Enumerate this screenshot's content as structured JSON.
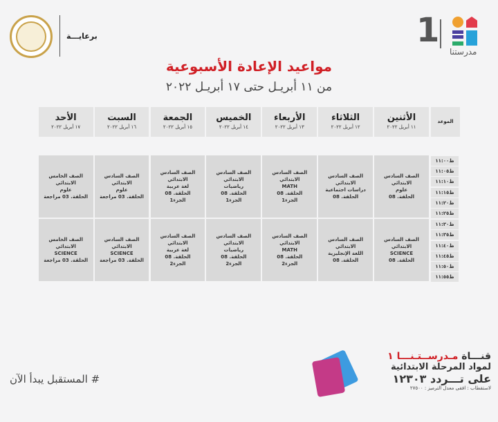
{
  "header": {
    "sponsor_label": "برعايـــة",
    "brand_name": "مدرستنا",
    "brand_number": "1",
    "ministry_seal": "MINISTRY OF EDUCATION AND TECHNICAL EDUCATION",
    "title": "مواعيد الإعادة الأسبوعية",
    "subtitle": "من ١١ أبريـل حتى ١٧ أبريـل ٢٠٢٢"
  },
  "table": {
    "time_header": "الموعد",
    "days": [
      {
        "name": "الأثنين",
        "date": "١١ أبريل ٢٠٢٢"
      },
      {
        "name": "الثلاثاء",
        "date": "١٢ أبريل ٢٠٢٢"
      },
      {
        "name": "الأربعاء",
        "date": "١٣ أبريل ٢٠٢٢"
      },
      {
        "name": "الخميس",
        "date": "١٤ أبريل ٢٠٢٢"
      },
      {
        "name": "الجمعة",
        "date": "١٥ أبريل ٢٠٢٢"
      },
      {
        "name": "السبت",
        "date": "١٦ أبريل ٢٠٢٢"
      },
      {
        "name": "الأحد",
        "date": "١٧ أبريل ٢٠٢٢"
      }
    ],
    "times": [
      "ظ١١:٠٠",
      "ظ١١:٠٥",
      "ظ١١:١٠",
      "ظ١١:١٥",
      "ظ١١:٢٠",
      "ظ١١:٢٥",
      "ظ١١:٣٠",
      "ظ١١:٣٥",
      "ظ١١:٤٠",
      "ظ١١:٤٥",
      "ظ١١:٥٠",
      "ظ١١:٥٥"
    ],
    "slots": [
      [
        [
          "الصف السادس الابتدائي",
          "علوم",
          "الحلقة. 08"
        ],
        [
          "الصف السادس الابتدائي",
          "دراسات اجتماعية",
          "الحلقة. 08"
        ],
        [
          "الصف السادس الابتدائي",
          "MATH",
          "الحلقة. 08",
          "الجزء1"
        ],
        [
          "الصف السادس الابتدائي",
          "رياضيات",
          "الحلقة. 08",
          "الجزء1"
        ],
        [
          "الصف السادس الابتدائي",
          "لغة عربية",
          "الحلقة. 08",
          "الجزء1"
        ],
        [
          "الصف السادس الابتدائي",
          "علوم",
          "الحلقة. 03 مراجعة"
        ],
        [
          "الصف الخامس الابتدائي",
          "علوم",
          "الحلقة. 03 مراجعة"
        ]
      ],
      [
        [
          "الصف السادس الابتدائي",
          "SCIENCE",
          "الحلقة. 08"
        ],
        [
          "الصف السادس الابتدائي",
          "اللغة الإنجليزية",
          "الحلقة. 08"
        ],
        [
          "الصف السادس الابتدائي",
          "MATH",
          "الحلقة. 08",
          "الجزء2"
        ],
        [
          "الصف السادس الابتدائي",
          "رياضيات",
          "الحلقة. 08",
          "الجزء2"
        ],
        [
          "الصف السادس الابتدائي",
          "لغة عربية",
          "الحلقة. 08",
          "الجزء2"
        ],
        [
          "الصف السادس الابتدائي",
          "SCIENCE",
          "الحلقة. 03 مراجعة"
        ],
        [
          "الصف الخامس الابتدائي",
          "SCIENCE",
          "الحلقة. 03 مراجعة"
        ]
      ]
    ]
  },
  "footer": {
    "hashtag": "# المستقبل يبدأ الآن",
    "channel_prefix": "قنـــاة",
    "channel_name": "مـدرســتـنـــا ١",
    "line2": "لمواد المرحلة الابتدائية",
    "line3": "على تـــردد ١٢٣٠٣",
    "reception": "لاستقطاب : افقى معدل الترميز : ٢٧٥٠٠"
  },
  "colors": {
    "title": "#d01f25",
    "background": "#f4f4f5",
    "header_cell": "#e4e4e4",
    "body_cell": "#d9d9d9"
  }
}
